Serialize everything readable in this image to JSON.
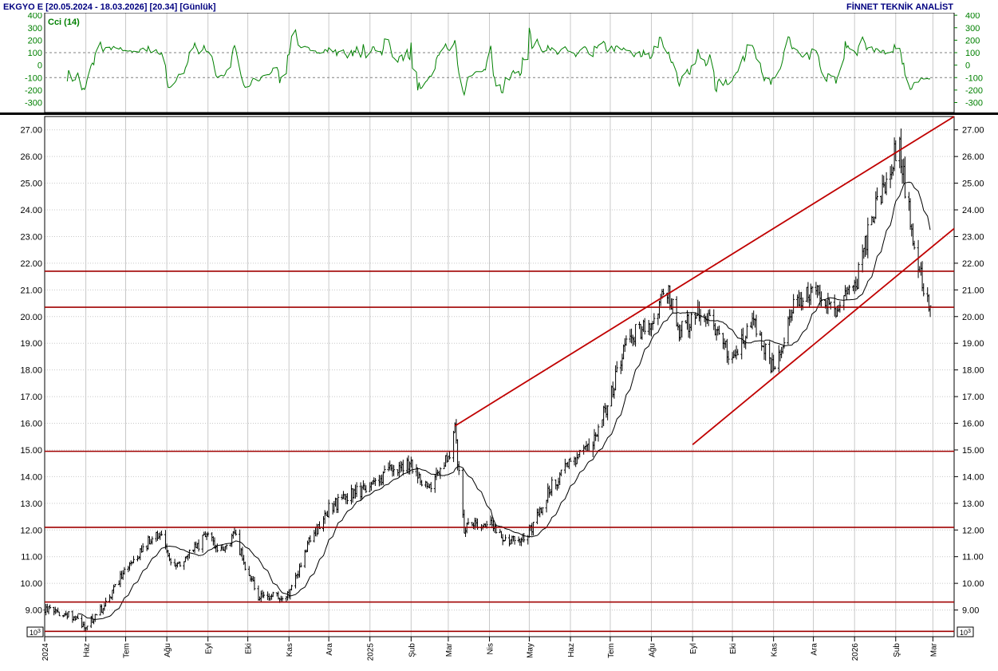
{
  "header": {
    "title": "EKGYO E  [20.05.2024 - 18.03.2026]  [20.34]  [Günlük]",
    "brand": "FİNNET TEKNİK ANALİST"
  },
  "colors": {
    "candles": "#000000",
    "moving_average": "#000000",
    "cci": "#008000",
    "trend_lines": "#c00000",
    "support_lines": "#a00000",
    "grid": "#c8c8c8"
  },
  "chart_data": [
    {
      "type": "line",
      "panel": "indicator",
      "legend": "Cci (14)",
      "ylim": [
        -380,
        420
      ],
      "y_ticks": [
        400,
        300,
        200,
        100,
        0,
        -100,
        -200,
        -300
      ],
      "y_tick_labels": [
        "400",
        "300",
        "200",
        "100",
        "0",
        "-100",
        "-200",
        "-300"
      ],
      "reference_lines": [
        100,
        -100
      ],
      "grid": true
    },
    {
      "type": "candlestick",
      "panel": "price",
      "ylim": [
        8.0,
        27.5
      ],
      "y_ticks": [
        9,
        10,
        11,
        12,
        13,
        14,
        15,
        16,
        17,
        18,
        19,
        20,
        21,
        22,
        23,
        24,
        25,
        26,
        27
      ],
      "y_tick_labels": [
        "9.00",
        "10.00",
        "11.00",
        "12.00",
        "13.00",
        "14.00",
        "15.00",
        "16.00",
        "17.00",
        "18.00",
        "19.00",
        "20.00",
        "21.00",
        "22.00",
        "23.00",
        "24.00",
        "25.00",
        "26.00",
        "27.00"
      ],
      "unit_label": "10^3",
      "x_ticks": [
        {
          "date": "2024-05-20",
          "label": "2024"
        },
        {
          "date": "2024-06-20",
          "label": "Haz"
        },
        {
          "date": "2024-07-20",
          "label": "Tem"
        },
        {
          "date": "2024-08-20",
          "label": "Ağu"
        },
        {
          "date": "2024-09-20",
          "label": "Eyl"
        },
        {
          "date": "2024-10-20",
          "label": "Eki"
        },
        {
          "date": "2024-11-20",
          "label": "Kas"
        },
        {
          "date": "2024-12-20",
          "label": "Ara"
        },
        {
          "date": "2025-01-20",
          "label": "2025"
        },
        {
          "date": "2025-02-20",
          "label": "Şub"
        },
        {
          "date": "2025-03-20",
          "label": "Mar"
        },
        {
          "date": "2025-04-20",
          "label": "Nis"
        },
        {
          "date": "2025-05-20",
          "label": "May"
        },
        {
          "date": "2025-06-20",
          "label": "Haz"
        },
        {
          "date": "2025-07-20",
          "label": "Tem"
        },
        {
          "date": "2025-08-20",
          "label": "Ağu"
        },
        {
          "date": "2025-09-20",
          "label": "Eyl"
        },
        {
          "date": "2025-10-20",
          "label": "Eki"
        },
        {
          "date": "2025-11-20",
          "label": "Kas"
        },
        {
          "date": "2025-12-20",
          "label": "Ara"
        },
        {
          "date": "2026-01-20",
          "label": "2026"
        },
        {
          "date": "2026-02-20",
          "label": "Şub"
        },
        {
          "date": "2026-03-20",
          "label": "Mar"
        }
      ],
      "price_path": [
        [
          "2024-05-20",
          9.0
        ],
        [
          "2024-06-05",
          8.9
        ],
        [
          "2024-06-20",
          8.4
        ],
        [
          "2024-07-05",
          9.2
        ],
        [
          "2024-07-20",
          10.6
        ],
        [
          "2024-08-05",
          11.5
        ],
        [
          "2024-08-15",
          11.9
        ],
        [
          "2024-08-25",
          10.6
        ],
        [
          "2024-09-05",
          11.0
        ],
        [
          "2024-09-20",
          11.9
        ],
        [
          "2024-09-28",
          11.1
        ],
        [
          "2024-10-10",
          11.8
        ],
        [
          "2024-10-20",
          10.4
        ],
        [
          "2024-10-28",
          9.5
        ],
        [
          "2024-11-20",
          9.6
        ],
        [
          "2024-12-05",
          11.5
        ],
        [
          "2024-12-20",
          12.8
        ],
        [
          "2025-01-05",
          13.3
        ],
        [
          "2025-01-20",
          13.6
        ],
        [
          "2025-02-05",
          14.3
        ],
        [
          "2025-02-20",
          14.4
        ],
        [
          "2025-03-05",
          13.5
        ],
        [
          "2025-03-20",
          14.7
        ],
        [
          "2025-03-25",
          15.7
        ],
        [
          "2025-04-01",
          12.0
        ],
        [
          "2025-04-20",
          12.4
        ],
        [
          "2025-05-05",
          11.5
        ],
        [
          "2025-05-20",
          11.9
        ],
        [
          "2025-06-05",
          13.6
        ],
        [
          "2025-06-20",
          14.5
        ],
        [
          "2025-07-05",
          15.2
        ],
        [
          "2025-07-20",
          16.9
        ],
        [
          "2025-08-01",
          19.2
        ],
        [
          "2025-08-20",
          19.8
        ],
        [
          "2025-09-01",
          21.0
        ],
        [
          "2025-09-10",
          19.4
        ],
        [
          "2025-09-25",
          20.2
        ],
        [
          "2025-10-10",
          19.4
        ],
        [
          "2025-10-20",
          18.4
        ],
        [
          "2025-11-05",
          19.8
        ],
        [
          "2025-11-20",
          18.0
        ],
        [
          "2025-12-05",
          20.5
        ],
        [
          "2025-12-20",
          21.0
        ],
        [
          "2026-01-05",
          20.2
        ],
        [
          "2026-01-20",
          21.0
        ],
        [
          "2026-02-01",
          23.5
        ],
        [
          "2026-02-15",
          25.5
        ],
        [
          "2026-02-22",
          26.6
        ],
        [
          "2026-03-01",
          24.2
        ],
        [
          "2026-03-08",
          22.1
        ],
        [
          "2026-03-18",
          20.34
        ]
      ],
      "trend_lines": [
        {
          "from": [
            "2025-03-25",
            15.9
          ],
          "to": [
            "2026-04-05",
            27.5
          ]
        },
        {
          "from": [
            "2025-09-20",
            15.2
          ],
          "to": [
            "2026-04-05",
            23.3
          ]
        }
      ],
      "horizontal_levels": [
        21.7,
        20.35,
        14.95,
        12.1,
        9.3,
        8.2
      ],
      "last_close": 20.34,
      "grid": true
    }
  ]
}
